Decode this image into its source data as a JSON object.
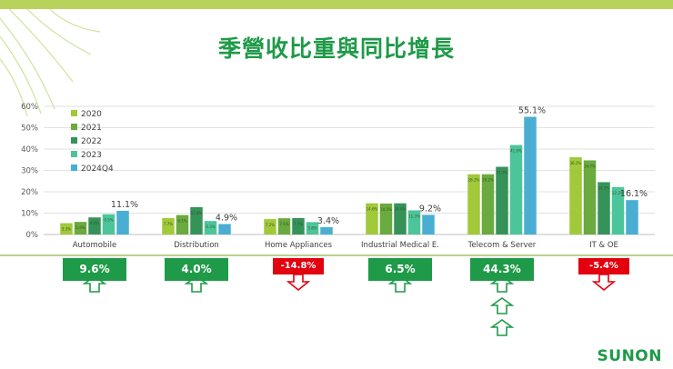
{
  "title": "季營收比重與同比增長",
  "brand": "SUNON",
  "chart_data": {
    "type": "bar",
    "categories": [
      "Automobile",
      "Distribution",
      "Home Appliances",
      "Industrial Medical E.",
      "Telecom & Server",
      "IT & OE"
    ],
    "series": [
      {
        "name": "2020",
        "color": "#a1c93a",
        "values": [
          5.3,
          7.7,
          7.2,
          14.6,
          28.2,
          36.2
        ],
        "labels": [
          "5.3%",
          "7.7%",
          "7.2%",
          "14.6%",
          "28.2%",
          "36.2%"
        ]
      },
      {
        "name": "2021",
        "color": "#6aaa3e",
        "values": [
          5.9,
          9.1,
          7.6,
          14.5,
          28.2,
          34.7
        ],
        "labels": [
          "5.9%",
          "9.1%",
          "7.6%",
          "14.5%",
          "28.2%",
          "34.7%"
        ]
      },
      {
        "name": "2022",
        "color": "#35935a",
        "values": [
          8.0,
          12.8,
          7.7,
          14.6,
          31.7,
          24.5
        ],
        "labels": [
          "8.0%",
          "12.8%",
          "7.7%",
          "14.6%",
          "31.7%",
          "24.5%"
        ]
      },
      {
        "name": "2023",
        "color": "#4cc59b",
        "values": [
          9.5,
          6.3,
          5.8,
          11.3,
          41.9,
          22.2
        ],
        "labels": [
          "9.5%",
          "6.3%",
          "5.8%",
          "11.3%",
          "41.9%",
          "22.2%"
        ]
      },
      {
        "name": "2024Q4",
        "color": "#4aaed2",
        "values": [
          11.1,
          4.9,
          3.4,
          9.2,
          55.1,
          16.1
        ],
        "labels": [
          "11.1%",
          "4.9%",
          "3.4%",
          "9.2%",
          "55.1%",
          "16.1%"
        ]
      }
    ],
    "yticks": [
      "0%",
      "10%",
      "20%",
      "30%",
      "40%",
      "50%",
      "60%"
    ],
    "ylim": [
      0,
      60
    ],
    "legend": "top-left",
    "grid": true,
    "growth": [
      {
        "label": "9.6%",
        "direction": "up",
        "arrows": 1
      },
      {
        "label": "4.0%",
        "direction": "up",
        "arrows": 1
      },
      {
        "label": "-14.8%",
        "direction": "down",
        "arrows": 1
      },
      {
        "label": "6.5%",
        "direction": "up",
        "arrows": 1
      },
      {
        "label": "44.3%",
        "direction": "up",
        "arrows": 3
      },
      {
        "label": "-5.4%",
        "direction": "down",
        "arrows": 1
      }
    ],
    "colors": {
      "positive": "#1f9a48",
      "negative": "#e3000f",
      "grid": "#d9d9d9",
      "axis": "#bfbfbf"
    }
  }
}
